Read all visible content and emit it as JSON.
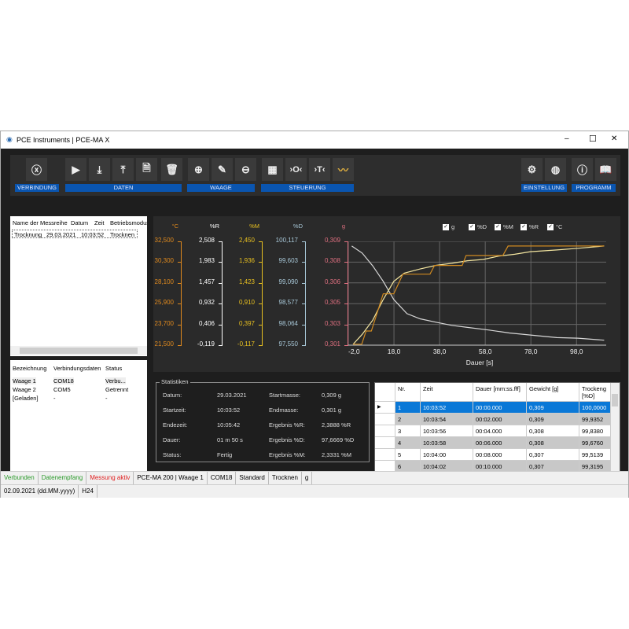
{
  "window": {
    "title": "PCE Instruments | PCE-MA X",
    "minimize": "–",
    "maximize": "☐",
    "close": "✕"
  },
  "toolbar": {
    "groups": [
      "VERBINDUNG",
      "DATEN",
      "WAAGE",
      "STEUERUNG",
      "EINSTELLUNG",
      "PROGRAMM"
    ],
    "buttons": [
      {
        "icon": "disconnect-icon",
        "glyph": "ⓧ"
      },
      {
        "icon": "play-icon",
        "glyph": "▶"
      },
      {
        "icon": "import-icon",
        "glyph": "⤓"
      },
      {
        "icon": "export-icon",
        "glyph": "⤒"
      },
      {
        "icon": "file-send-icon",
        "glyph": "🗎"
      },
      {
        "icon": "trash-icon",
        "glyph": "🗑"
      },
      {
        "icon": "plus-icon",
        "glyph": "⊕"
      },
      {
        "icon": "pencil-icon",
        "glyph": "✎"
      },
      {
        "icon": "minus-icon",
        "glyph": "⊖"
      },
      {
        "icon": "calculator-icon",
        "glyph": "▦"
      },
      {
        "icon": "zero-icon",
        "glyph": "›O‹"
      },
      {
        "icon": "tare-icon",
        "glyph": "›T‹"
      },
      {
        "icon": "chart-signal-icon",
        "glyph": "〰"
      },
      {
        "icon": "gear-icon",
        "glyph": "⚙"
      },
      {
        "icon": "globe-icon",
        "glyph": "◍"
      },
      {
        "icon": "info-icon",
        "glyph": "ⓘ"
      },
      {
        "icon": "book-icon",
        "glyph": "📖"
      }
    ]
  },
  "series_list": {
    "columns": [
      "Name der Messreihe",
      "Datum",
      "Zeit",
      "Betriebsmodus"
    ],
    "rows": [
      [
        "Trocknung",
        "29.03.2021",
        "10:03:52",
        "Trocknen"
      ]
    ]
  },
  "devices": {
    "columns": [
      "Bezeichnung",
      "Verbindungsdaten",
      "Status"
    ],
    "rows": [
      [
        "Waage 1",
        "COM18",
        "Verbu..."
      ],
      [
        "Waage 2",
        "COM5",
        "Getrennt"
      ],
      [
        "[Geladen]",
        "-",
        "-"
      ]
    ]
  },
  "chart_data": {
    "type": "line",
    "xlabel": "Dauer [s]",
    "xlim": [
      -2,
      111
    ],
    "xticks": [
      "-2,0",
      "18,0",
      "38,0",
      "58,0",
      "78,0",
      "98,0"
    ],
    "xtick_values": [
      -2,
      18,
      38,
      58,
      78,
      98
    ],
    "grid": true,
    "legend": {
      "placement": "top-right",
      "entries": [
        "g",
        "%D",
        "%M",
        "%R",
        "°C"
      ],
      "checked": [
        true,
        true,
        true,
        true,
        true
      ]
    },
    "axes": [
      {
        "unit": "°C",
        "color": "#e08a1e",
        "ticks": [
          "32,500",
          "30,300",
          "28,100",
          "25,900",
          "23,700",
          "21,500"
        ]
      },
      {
        "unit": "%R",
        "color": "#ffffff",
        "ticks": [
          "2,508",
          "1,983",
          "1,457",
          "0,932",
          "0,406",
          "-0,119"
        ]
      },
      {
        "unit": "%M",
        "color": "#e8c020",
        "ticks": [
          "2,450",
          "1,936",
          "1,423",
          "0,910",
          "0,397",
          "-0,117"
        ]
      },
      {
        "unit": "%D",
        "color": "#a8c8d8",
        "ticks": [
          "100,117",
          "99,603",
          "99,090",
          "98,577",
          "98,064",
          "97,550"
        ]
      },
      {
        "unit": "g",
        "color": "#e07080",
        "ticks": [
          "0,309",
          "0,308",
          "0,306",
          "0,305",
          "0,303",
          "0,301"
        ]
      }
    ],
    "series": [
      {
        "name": "g",
        "color": "#d8d8d8",
        "ylim": [
          0.301,
          0.309
        ],
        "x": [
          -0.5,
          4.1,
          8.7,
          13.3,
          17.9,
          23.7,
          29.5,
          36.4,
          43.3,
          50.2,
          59.4,
          68.6,
          77.8,
          89.4,
          98.6,
          110.1
        ],
        "y": [
          0.30864,
          0.3081,
          0.30711,
          0.30592,
          0.30452,
          0.30343,
          0.30303,
          0.30277,
          0.30253,
          0.30237,
          0.30217,
          0.30194,
          0.30178,
          0.30158,
          0.30154,
          0.30138
        ]
      },
      {
        "name": "%M",
        "color": "#f4e6a0",
        "ylim": [
          -0.117,
          2.45
        ],
        "x": [
          0.1,
          4.1,
          8.7,
          13.3,
          17.9,
          22.5,
          29.5,
          36.4,
          43.3,
          50.2,
          57.1,
          64.0,
          70.9,
          77.8,
          89.4,
          98.6,
          110.1
        ],
        "y": [
          -0.096,
          0.151,
          0.502,
          1.013,
          1.46,
          1.665,
          1.767,
          1.856,
          1.907,
          1.971,
          2.003,
          2.086,
          2.131,
          2.195,
          2.239,
          2.278,
          2.335
        ]
      },
      {
        "name": "%R",
        "color": "#d08a20",
        "ylim": [
          -0.119,
          2.508
        ],
        "x": [
          0.1,
          3.9,
          5.8,
          8.1,
          13.3,
          17.9,
          21.9,
          33.8,
          35.8,
          47.9,
          49.6,
          65.7,
          68.0,
          110.1
        ],
        "y": [
          -0.095,
          -0.095,
          0.24,
          0.24,
          1.181,
          1.181,
          1.678,
          1.678,
          1.9,
          1.9,
          2.149,
          2.149,
          2.39,
          2.39
        ]
      }
    ]
  },
  "stats": {
    "title": "Statistiken",
    "left": [
      [
        "Datum:",
        "29.03.2021"
      ],
      [
        "Startzeit:",
        "10:03:52"
      ],
      [
        "Endezeit:",
        "10:05:42"
      ],
      [
        "Dauer:",
        "01 m 50 s"
      ],
      [
        "Status:",
        "Fertig"
      ]
    ],
    "right": [
      [
        "Startmasse:",
        "0,309 g"
      ],
      [
        "Endmasse:",
        "0,301 g"
      ],
      [
        "Ergebnis %R:",
        "2,3888 %R"
      ],
      [
        "Ergebnis %D:",
        "97,6669 %D"
      ],
      [
        "Ergebnis %M:",
        "2,3331 %M"
      ]
    ]
  },
  "table": {
    "columns": [
      "Nr.",
      "Zeit",
      "Dauer [mm:ss.fff]",
      "Gewicht [g]",
      "Trockeng [%D]"
    ],
    "rows": [
      [
        "1",
        "10:03:52",
        "00:00.000",
        "0,309",
        "100,0000"
      ],
      [
        "2",
        "10:03:54",
        "00:02.000",
        "0,309",
        "99,9352"
      ],
      [
        "3",
        "10:03:56",
        "00:04.000",
        "0,308",
        "99,8380"
      ],
      [
        "4",
        "10:03:58",
        "00:06.000",
        "0,308",
        "99,6760"
      ],
      [
        "5",
        "10:04:00",
        "00:08.000",
        "0,307",
        "99,5139"
      ],
      [
        "6",
        "10:04:02",
        "00:10.000",
        "0,307",
        "99,3195"
      ]
    ]
  },
  "status": {
    "items": [
      {
        "text": "Verbunden",
        "color": "#2a9a2a"
      },
      {
        "text": "Datenempfang",
        "color": "#2a9a2a"
      },
      {
        "text": "Messung aktiv",
        "color": "#e02020"
      },
      {
        "text": "PCE-MA 200 | Waage 1",
        "color": "#000000"
      },
      {
        "text": "COM18",
        "color": "#000000"
      },
      {
        "text": "Standard",
        "color": "#000000"
      },
      {
        "text": "Trocknen",
        "color": "#000000"
      },
      {
        "text": "g",
        "color": "#000000"
      }
    ],
    "row2": [
      "02.09.2021 (dd.MM.yyyy)",
      "H24"
    ]
  }
}
